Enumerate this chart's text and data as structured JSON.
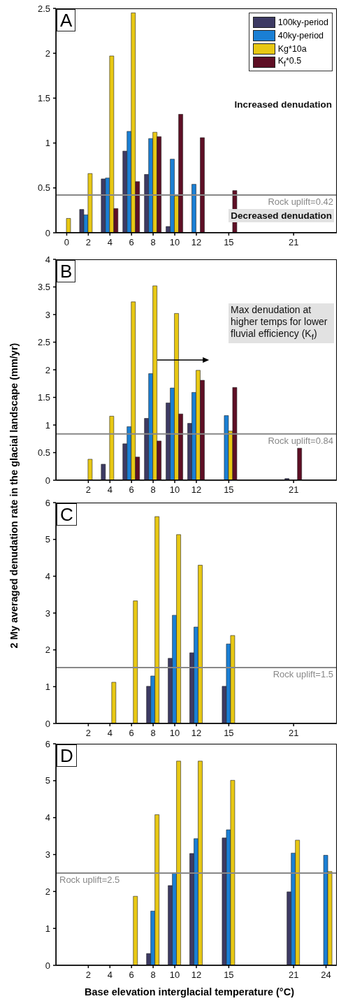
{
  "chart_data": [
    {
      "type": "bar",
      "title": "A",
      "x": [
        0,
        2,
        4,
        6,
        8,
        10,
        12,
        15
      ],
      "xlim": [
        -1,
        25
      ],
      "xticks": [
        0,
        2,
        4,
        6,
        8,
        10,
        12,
        15,
        21
      ],
      "ylim": [
        0,
        2.5
      ],
      "yticks": [
        0,
        0.5,
        1,
        1.5,
        2,
        2.5
      ],
      "legend": "top right",
      "series": [
        {
          "name": "100ky-period",
          "color": "#3d3a63",
          "values": [
            null,
            0.26,
            0.6,
            0.91,
            0.65,
            0.07,
            null,
            null
          ]
        },
        {
          "name": "40ky-period",
          "color": "#1a7fd4",
          "values": [
            null,
            0.2,
            0.61,
            1.13,
            1.05,
            0.82,
            0.54,
            null
          ]
        },
        {
          "name": "Kg*10a",
          "color": "#e8c814",
          "values": [
            0.16,
            0.66,
            1.97,
            2.45,
            1.12,
            0.41,
            null,
            null
          ]
        },
        {
          "name": "K$_{f}$*0.5",
          "color": "#5e0f25",
          "values": [
            null,
            null,
            0.27,
            0.57,
            1.07,
            1.32,
            1.06,
            0.47
          ]
        }
      ],
      "ref_lines": [
        {
          "axis": "y",
          "value": 0.42,
          "label": "Rock uplift=0.42",
          "color": "#888888"
        }
      ],
      "annotations": [
        "Increased denudation",
        "Decreased denudation"
      ]
    },
    {
      "type": "bar",
      "title": "B",
      "x": [
        2,
        4,
        6,
        8,
        10,
        12,
        15,
        21
      ],
      "xlim": [
        -1,
        25
      ],
      "xticks": [
        2,
        4,
        6,
        8,
        10,
        12,
        15,
        21
      ],
      "ylim": [
        0,
        4
      ],
      "yticks": [
        0,
        0.5,
        1,
        1.5,
        2,
        2.5,
        3,
        3.5,
        4
      ],
      "ylabel": "2 My averaged denudation rate in the glacial landscape (mm/yr)",
      "series": [
        {
          "color": "#3d3a63",
          "values": [
            null,
            0.29,
            0.66,
            1.12,
            1.4,
            1.03,
            null,
            0.03
          ]
        },
        {
          "color": "#1a7fd4",
          "values": [
            null,
            null,
            0.97,
            1.93,
            1.67,
            1.59,
            1.17,
            null
          ]
        },
        {
          "color": "#e8c814",
          "values": [
            0.38,
            1.16,
            3.23,
            3.52,
            3.02,
            1.99,
            0.89,
            null
          ]
        },
        {
          "color": "#5e0f25",
          "values": [
            null,
            null,
            0.42,
            0.71,
            1.2,
            1.81,
            1.68,
            0.58
          ]
        }
      ],
      "ref_lines": [
        {
          "axis": "y",
          "value": 0.84,
          "label": "Rock uplift=0.84",
          "color": "#888888"
        }
      ],
      "annotations": [
        "Max denudation at higher temps for lower fluvial efficiency (K$_{f}$)"
      ]
    },
    {
      "type": "bar",
      "title": "C",
      "x": [
        4,
        6,
        8,
        10,
        12,
        15
      ],
      "xlim": [
        -1,
        25
      ],
      "xticks": [
        2,
        4,
        6,
        8,
        10,
        12,
        15,
        21
      ],
      "ylim": [
        0,
        6
      ],
      "yticks": [
        0,
        1,
        2,
        3,
        4,
        5,
        6
      ],
      "series": [
        {
          "color": "#3d3a63",
          "values": [
            null,
            null,
            1.01,
            1.77,
            1.92,
            1.01
          ]
        },
        {
          "color": "#1a7fd4",
          "values": [
            null,
            null,
            1.29,
            2.94,
            2.62,
            2.16
          ]
        },
        {
          "color": "#e8c814",
          "values": [
            1.12,
            3.33,
            5.62,
            5.13,
            4.3,
            2.39
          ]
        }
      ],
      "ref_lines": [
        {
          "axis": "y",
          "value": 1.52,
          "label": "Rock uplift=1.5",
          "color": "#888888"
        }
      ]
    },
    {
      "type": "bar",
      "title": "D",
      "x": [
        6,
        8,
        10,
        12,
        15,
        21,
        24
      ],
      "xlim": [
        -1,
        25
      ],
      "xticks": [
        2,
        4,
        6,
        8,
        10,
        12,
        15,
        21,
        24
      ],
      "ylim": [
        0,
        6
      ],
      "yticks": [
        0,
        1,
        2,
        3,
        4,
        5,
        6
      ],
      "xlabel": "Base elevation interglacial temperature (°C)",
      "series": [
        {
          "color": "#3d3a63",
          "values": [
            null,
            0.32,
            2.16,
            3.03,
            3.45,
            1.99,
            null
          ]
        },
        {
          "color": "#1a7fd4",
          "values": [
            null,
            1.47,
            2.51,
            3.43,
            3.67,
            3.04,
            2.98
          ]
        },
        {
          "color": "#e8c814",
          "values": [
            1.87,
            4.08,
            5.53,
            5.53,
            5.01,
            3.39,
            2.54
          ]
        }
      ],
      "ref_lines": [
        {
          "axis": "y",
          "value": 2.5,
          "label": "Rock uplift=2.5",
          "color": "#888888"
        }
      ]
    }
  ]
}
